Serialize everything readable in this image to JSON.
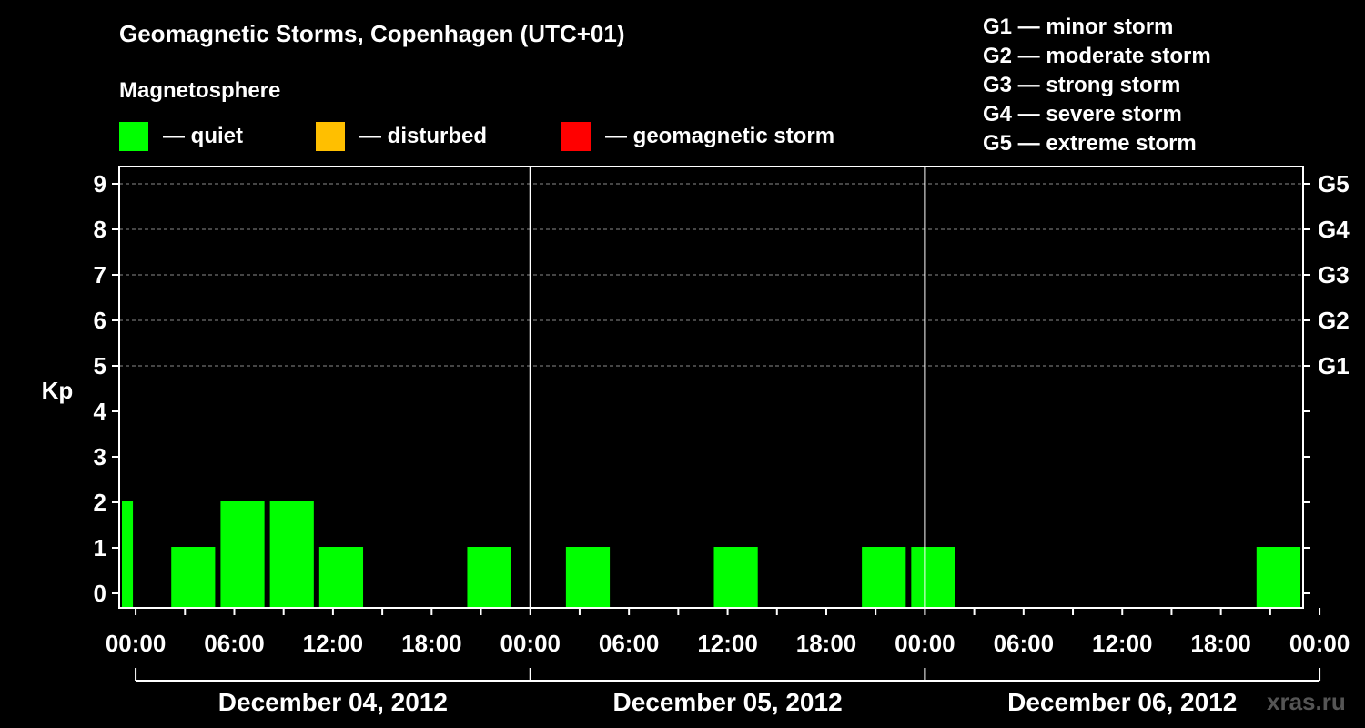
{
  "title": "Geomagnetic Storms, Copenhagen (UTC+01)",
  "magnetosphere": {
    "heading": "Magnetosphere",
    "items": [
      {
        "label": "— quiet",
        "color": "#00ff00"
      },
      {
        "label": "— disturbed",
        "color": "#ffbf00"
      },
      {
        "label": "— geomagnetic storm",
        "color": "#ff0000"
      }
    ]
  },
  "storm_scale": [
    "G1 — minor storm",
    "G2 — moderate storm",
    "G3 — strong storm",
    "G4 — severe storm",
    "G5 — extreme storm"
  ],
  "watermark": "xras.ru",
  "chart_data": {
    "type": "bar",
    "ylabel": "Kp",
    "ylim": [
      0,
      9
    ],
    "y_ticks": [
      0,
      1,
      2,
      3,
      4,
      5,
      6,
      7,
      8,
      9
    ],
    "right_axis": [
      {
        "label": "G1",
        "kp": 5
      },
      {
        "label": "G2",
        "kp": 6
      },
      {
        "label": "G3",
        "kp": 7
      },
      {
        "label": "G4",
        "kp": 8
      },
      {
        "label": "G5",
        "kp": 9
      }
    ],
    "x_range_hours": [
      -1,
      71
    ],
    "x_tick_labels": [
      {
        "hour": 0,
        "label": "00:00"
      },
      {
        "hour": 6,
        "label": "06:00"
      },
      {
        "hour": 12,
        "label": "12:00"
      },
      {
        "hour": 18,
        "label": "18:00"
      },
      {
        "hour": 24,
        "label": "00:00"
      },
      {
        "hour": 30,
        "label": "06:00"
      },
      {
        "hour": 36,
        "label": "12:00"
      },
      {
        "hour": 42,
        "label": "18:00"
      },
      {
        "hour": 48,
        "label": "00:00"
      },
      {
        "hour": 54,
        "label": "06:00"
      },
      {
        "hour": 60,
        "label": "12:00"
      },
      {
        "hour": 66,
        "label": "18:00"
      },
      {
        "hour": 72,
        "label": "00:00"
      }
    ],
    "days": [
      "December 04, 2012",
      "December 05, 2012",
      "December 06, 2012"
    ],
    "bars": [
      {
        "start": -1,
        "end": 0,
        "kp": 2,
        "status": "quiet"
      },
      {
        "start": 2,
        "end": 5,
        "kp": 1,
        "status": "quiet"
      },
      {
        "start": 5,
        "end": 8,
        "kp": 2,
        "status": "quiet"
      },
      {
        "start": 8,
        "end": 11,
        "kp": 2,
        "status": "quiet"
      },
      {
        "start": 11,
        "end": 14,
        "kp": 1,
        "status": "quiet"
      },
      {
        "start": 14,
        "end": 17,
        "kp": 0,
        "status": "quiet"
      },
      {
        "start": 17,
        "end": 20,
        "kp": 0,
        "status": "quiet"
      },
      {
        "start": 20,
        "end": 23,
        "kp": 1,
        "status": "quiet"
      },
      {
        "start": 23,
        "end": 26,
        "kp": 0,
        "status": "quiet"
      },
      {
        "start": 26,
        "end": 29,
        "kp": 1,
        "status": "quiet"
      },
      {
        "start": 29,
        "end": 32,
        "kp": 0,
        "status": "quiet"
      },
      {
        "start": 32,
        "end": 35,
        "kp": 0,
        "status": "quiet"
      },
      {
        "start": 35,
        "end": 38,
        "kp": 1,
        "status": "quiet"
      },
      {
        "start": 38,
        "end": 41,
        "kp": 0,
        "status": "quiet"
      },
      {
        "start": 41,
        "end": 44,
        "kp": 0,
        "status": "quiet"
      },
      {
        "start": 44,
        "end": 47,
        "kp": 1,
        "status": "quiet"
      },
      {
        "start": 47,
        "end": 50,
        "kp": 1,
        "status": "quiet"
      },
      {
        "start": 50,
        "end": 53,
        "kp": 0,
        "status": "quiet"
      },
      {
        "start": 53,
        "end": 56,
        "kp": 0,
        "status": "quiet"
      },
      {
        "start": 56,
        "end": 59,
        "kp": 0,
        "status": "quiet"
      },
      {
        "start": 59,
        "end": 62,
        "kp": 0,
        "status": "quiet"
      },
      {
        "start": 62,
        "end": 65,
        "kp": 0,
        "status": "quiet"
      },
      {
        "start": 65,
        "end": 68,
        "kp": 0,
        "status": "quiet"
      },
      {
        "start": 68,
        "end": 71,
        "kp": 1,
        "status": "quiet"
      }
    ],
    "status_colors": {
      "quiet": "#00ff00",
      "disturbed": "#ffbf00",
      "storm": "#ff0000"
    },
    "grid": "dashed at G levels",
    "legend_placement": "top"
  }
}
